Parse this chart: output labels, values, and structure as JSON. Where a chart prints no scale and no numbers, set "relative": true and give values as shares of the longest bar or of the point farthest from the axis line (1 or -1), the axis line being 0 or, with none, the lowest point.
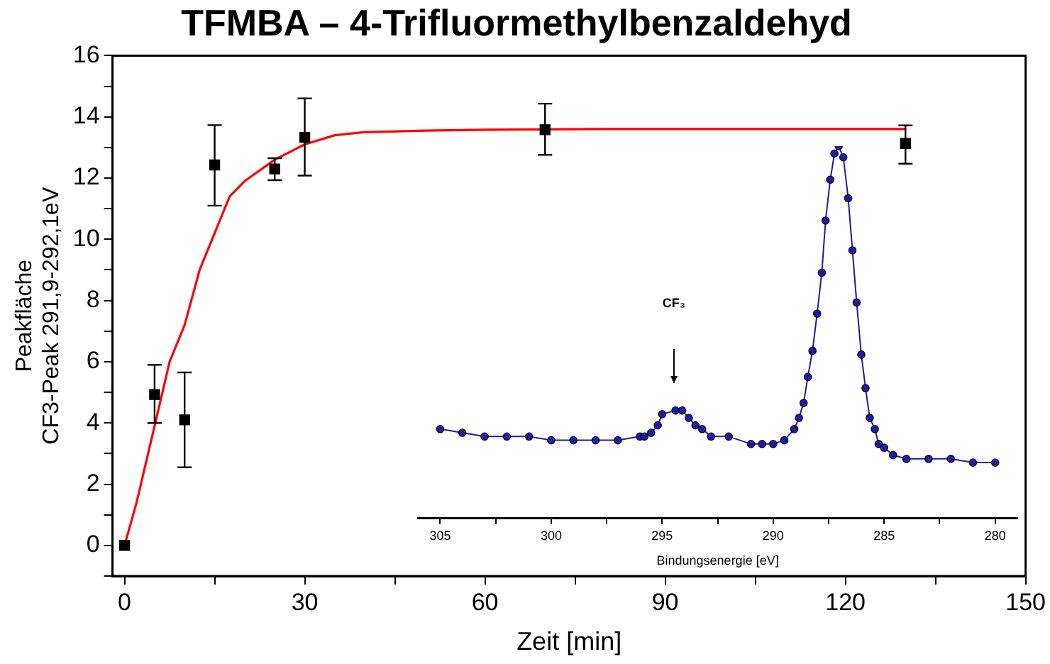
{
  "chart_data": [
    {
      "type": "scatter",
      "title": "TFMBA – 4-Trifluormethylbenzaldehyd",
      "xlabel": "Zeit [min]",
      "ylabel": "Peakfläche\nCF3-Peak 291,9-292,1eV",
      "xlim": [
        -2,
        150
      ],
      "xticks": [
        0,
        {
          "value": 15,
          "label": null
        },
        30,
        {
          "value": 45,
          "label": null
        },
        60,
        {
          "value": 75,
          "label": null
        },
        90,
        {
          "value": 105,
          "label": null
        },
        120,
        {
          "value": 135,
          "label": null
        },
        150
      ],
      "ylim": [
        -1,
        16
      ],
      "yticks": [
        {
          "value": -1,
          "label": null
        },
        0,
        {
          "value": 1,
          "label": null
        },
        2,
        {
          "value": 3,
          "label": null
        },
        4,
        {
          "value": 5,
          "label": null
        },
        6,
        {
          "value": 7,
          "label": null
        },
        8,
        {
          "value": 9,
          "label": null
        },
        10,
        {
          "value": 11,
          "label": null
        },
        12,
        {
          "value": 13,
          "label": null
        },
        14,
        {
          "value": 15,
          "label": null
        },
        16
      ],
      "grid": false,
      "legend": false,
      "series": [
        {
          "type": "scatter",
          "color": "#000000",
          "marker": "square",
          "x": [
            0,
            5,
            10,
            15,
            25,
            30,
            70,
            130
          ],
          "values": [
            0,
            4.93,
            4.1,
            12.43,
            12.3,
            13.33,
            13.58,
            13.13
          ],
          "errors": [
            null,
            [
              4.0,
              5.9
            ],
            [
              2.55,
              5.65
            ],
            [
              11.1,
              13.73
            ],
            [
              11.93,
              12.65
            ],
            [
              12.08,
              14.6
            ],
            [
              12.76,
              14.43
            ],
            [
              12.47,
              13.72
            ]
          ]
        },
        {
          "type": "line",
          "color": "#ff0000",
          "marker": "none",
          "x": [
            0,
            2,
            5,
            7.5,
            10,
            12.5,
            15,
            17.5,
            20,
            25,
            30,
            35,
            40,
            50,
            60,
            80,
            100,
            130
          ],
          "values": [
            0,
            1.4,
            3.9,
            6.0,
            7.2,
            9.0,
            10.2,
            11.4,
            11.9,
            12.6,
            13.1,
            13.4,
            13.5,
            13.55,
            13.58,
            13.6,
            13.6,
            13.6
          ]
        }
      ]
    },
    {
      "type": "line",
      "relative": true,
      "xlabel": "Bindungsenergie [eV]",
      "xlim": [
        306,
        279
      ],
      "xticks": [
        305,
        {
          "value": 302.5,
          "label": null
        },
        300,
        {
          "value": 297.5,
          "label": null
        },
        295,
        {
          "value": 292.5,
          "label": null
        },
        290,
        {
          "value": 287.5,
          "label": null
        },
        285,
        {
          "value": 282.5,
          "label": null
        },
        280
      ],
      "tick_labels": "x",
      "grid": false,
      "legend": false,
      "marker": "circle",
      "annotations": [
        "CF₃"
      ],
      "series": [
        {
          "color": "#1c1ca8",
          "x": [
            305,
            304,
            303,
            302,
            301,
            300,
            299,
            298,
            297,
            296,
            295.8,
            295.5,
            295.2,
            295.0,
            294.4,
            294.1,
            293.8,
            293.5,
            293.2,
            292.8,
            292,
            291,
            290.5,
            290,
            289.5,
            289.05,
            288.84,
            288.63,
            288.44,
            288.23,
            288.02,
            287.81,
            287.64,
            287.43,
            287.24,
            287.05,
            286.84,
            286.62,
            286.43,
            286.24,
            286.03,
            285.84,
            285.65,
            285.42,
            285.25,
            285,
            284.6,
            284,
            283,
            282,
            281,
            280
          ],
          "values": [
            0.24,
            0.23,
            0.22,
            0.22,
            0.22,
            0.21,
            0.21,
            0.21,
            0.21,
            0.22,
            0.22,
            0.23,
            0.25,
            0.28,
            0.29,
            0.29,
            0.27,
            0.25,
            0.24,
            0.22,
            0.22,
            0.2,
            0.2,
            0.2,
            0.21,
            0.24,
            0.27,
            0.31,
            0.38,
            0.45,
            0.55,
            0.66,
            0.8,
            0.91,
            0.98,
            1,
            0.97,
            0.86,
            0.72,
            0.58,
            0.44,
            0.35,
            0.27,
            0.24,
            0.2,
            0.19,
            0.17,
            0.16,
            0.16,
            0.16,
            0.15,
            0.15
          ]
        }
      ]
    }
  ]
}
